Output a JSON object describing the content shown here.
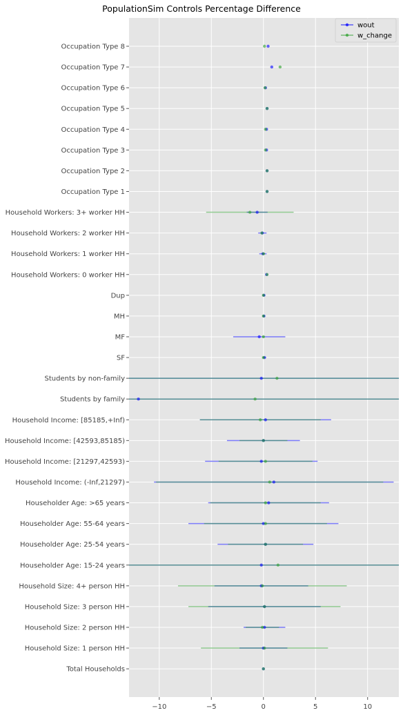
{
  "chart_data": {
    "type": "scatter",
    "title": "PopulationSim Controls Percentage Difference",
    "xlabel": "",
    "ylabel": "",
    "xlim": [
      -12.9,
      13.0
    ],
    "xticks": [
      -10,
      -5,
      0,
      5,
      10
    ],
    "xtick_labels": [
      "−10",
      "−5",
      "0",
      "5",
      "10"
    ],
    "grid": true,
    "legend_position": "top-right",
    "categories": [
      "Occupation Type 8",
      "Occupation Type 7",
      "Occupation Type 6",
      "Occupation Type 5",
      "Occupation Type 4",
      "Occupation Type 3",
      "Occupation Type 2",
      "Occupation Type 1",
      "Household Workers: 3+ worker HH",
      "Household Workers: 2 worker HH",
      "Household Workers: 1 worker HH",
      "Household Workers: 0 worker HH",
      "Dup",
      "MH",
      "MF",
      "SF",
      "Students by non-family",
      "Students by family",
      "Household Income: [85185,+Inf)",
      "Household Income: [42593,85185)",
      "Household Income: [21297,42593)",
      "Household Income: (-Inf,21297)",
      "Householder Age: >65 years",
      "Householder Age: 55-64 years",
      "Householder Age: 25-54 years",
      "Householder Age: 15-24 years",
      "Household Size: 4+ person HH",
      "Household Size: 3 person HH",
      "Household Size: 2 person HH",
      "Household Size: 1 person HH",
      "Total Households"
    ],
    "series": [
      {
        "name": "wout",
        "color": "#0000ff",
        "values": [
          0.45,
          0.8,
          0.2,
          0.35,
          0.3,
          0.3,
          0.35,
          0.35,
          -0.6,
          -0.1,
          -0.05,
          0.3,
          0.05,
          0.05,
          -0.4,
          0.1,
          -0.2,
          -12.0,
          0.2,
          0.0,
          -0.2,
          1.0,
          0.5,
          0.0,
          0.2,
          -0.2,
          -0.2,
          0.1,
          0.1,
          0.0,
          0.0
        ],
        "error": [
          0.0,
          0.0,
          0.0,
          0.0,
          0.0,
          0.0,
          0.0,
          0.0,
          1.0,
          0.4,
          0.35,
          0.0,
          0.1,
          0.1,
          2.5,
          0.15,
          40.0,
          40.0,
          6.3,
          3.5,
          5.4,
          11.5,
          5.8,
          7.2,
          4.6,
          40.0,
          4.5,
          5.4,
          2.0,
          2.3,
          0.0
        ]
      },
      {
        "name": "w_change",
        "color": "#2ca02c",
        "values": [
          0.1,
          1.6,
          0.15,
          0.35,
          0.2,
          0.2,
          0.35,
          0.35,
          -1.3,
          -0.15,
          0.0,
          0.35,
          0.0,
          0.0,
          0.0,
          0.0,
          1.3,
          -0.8,
          -0.3,
          0.0,
          0.2,
          0.6,
          0.2,
          0.2,
          0.2,
          1.4,
          -0.1,
          0.1,
          -0.1,
          0.1,
          0.0
        ],
        "error": [
          0.0,
          0.0,
          0.0,
          0.0,
          0.0,
          0.0,
          0.0,
          0.0,
          4.2,
          0.1,
          0.15,
          0.0,
          0.1,
          0.1,
          0.1,
          0.1,
          40.0,
          40.0,
          5.8,
          2.3,
          4.5,
          10.9,
          5.3,
          5.9,
          3.6,
          40.0,
          8.1,
          7.3,
          1.6,
          6.1,
          0.0
        ]
      }
    ]
  }
}
